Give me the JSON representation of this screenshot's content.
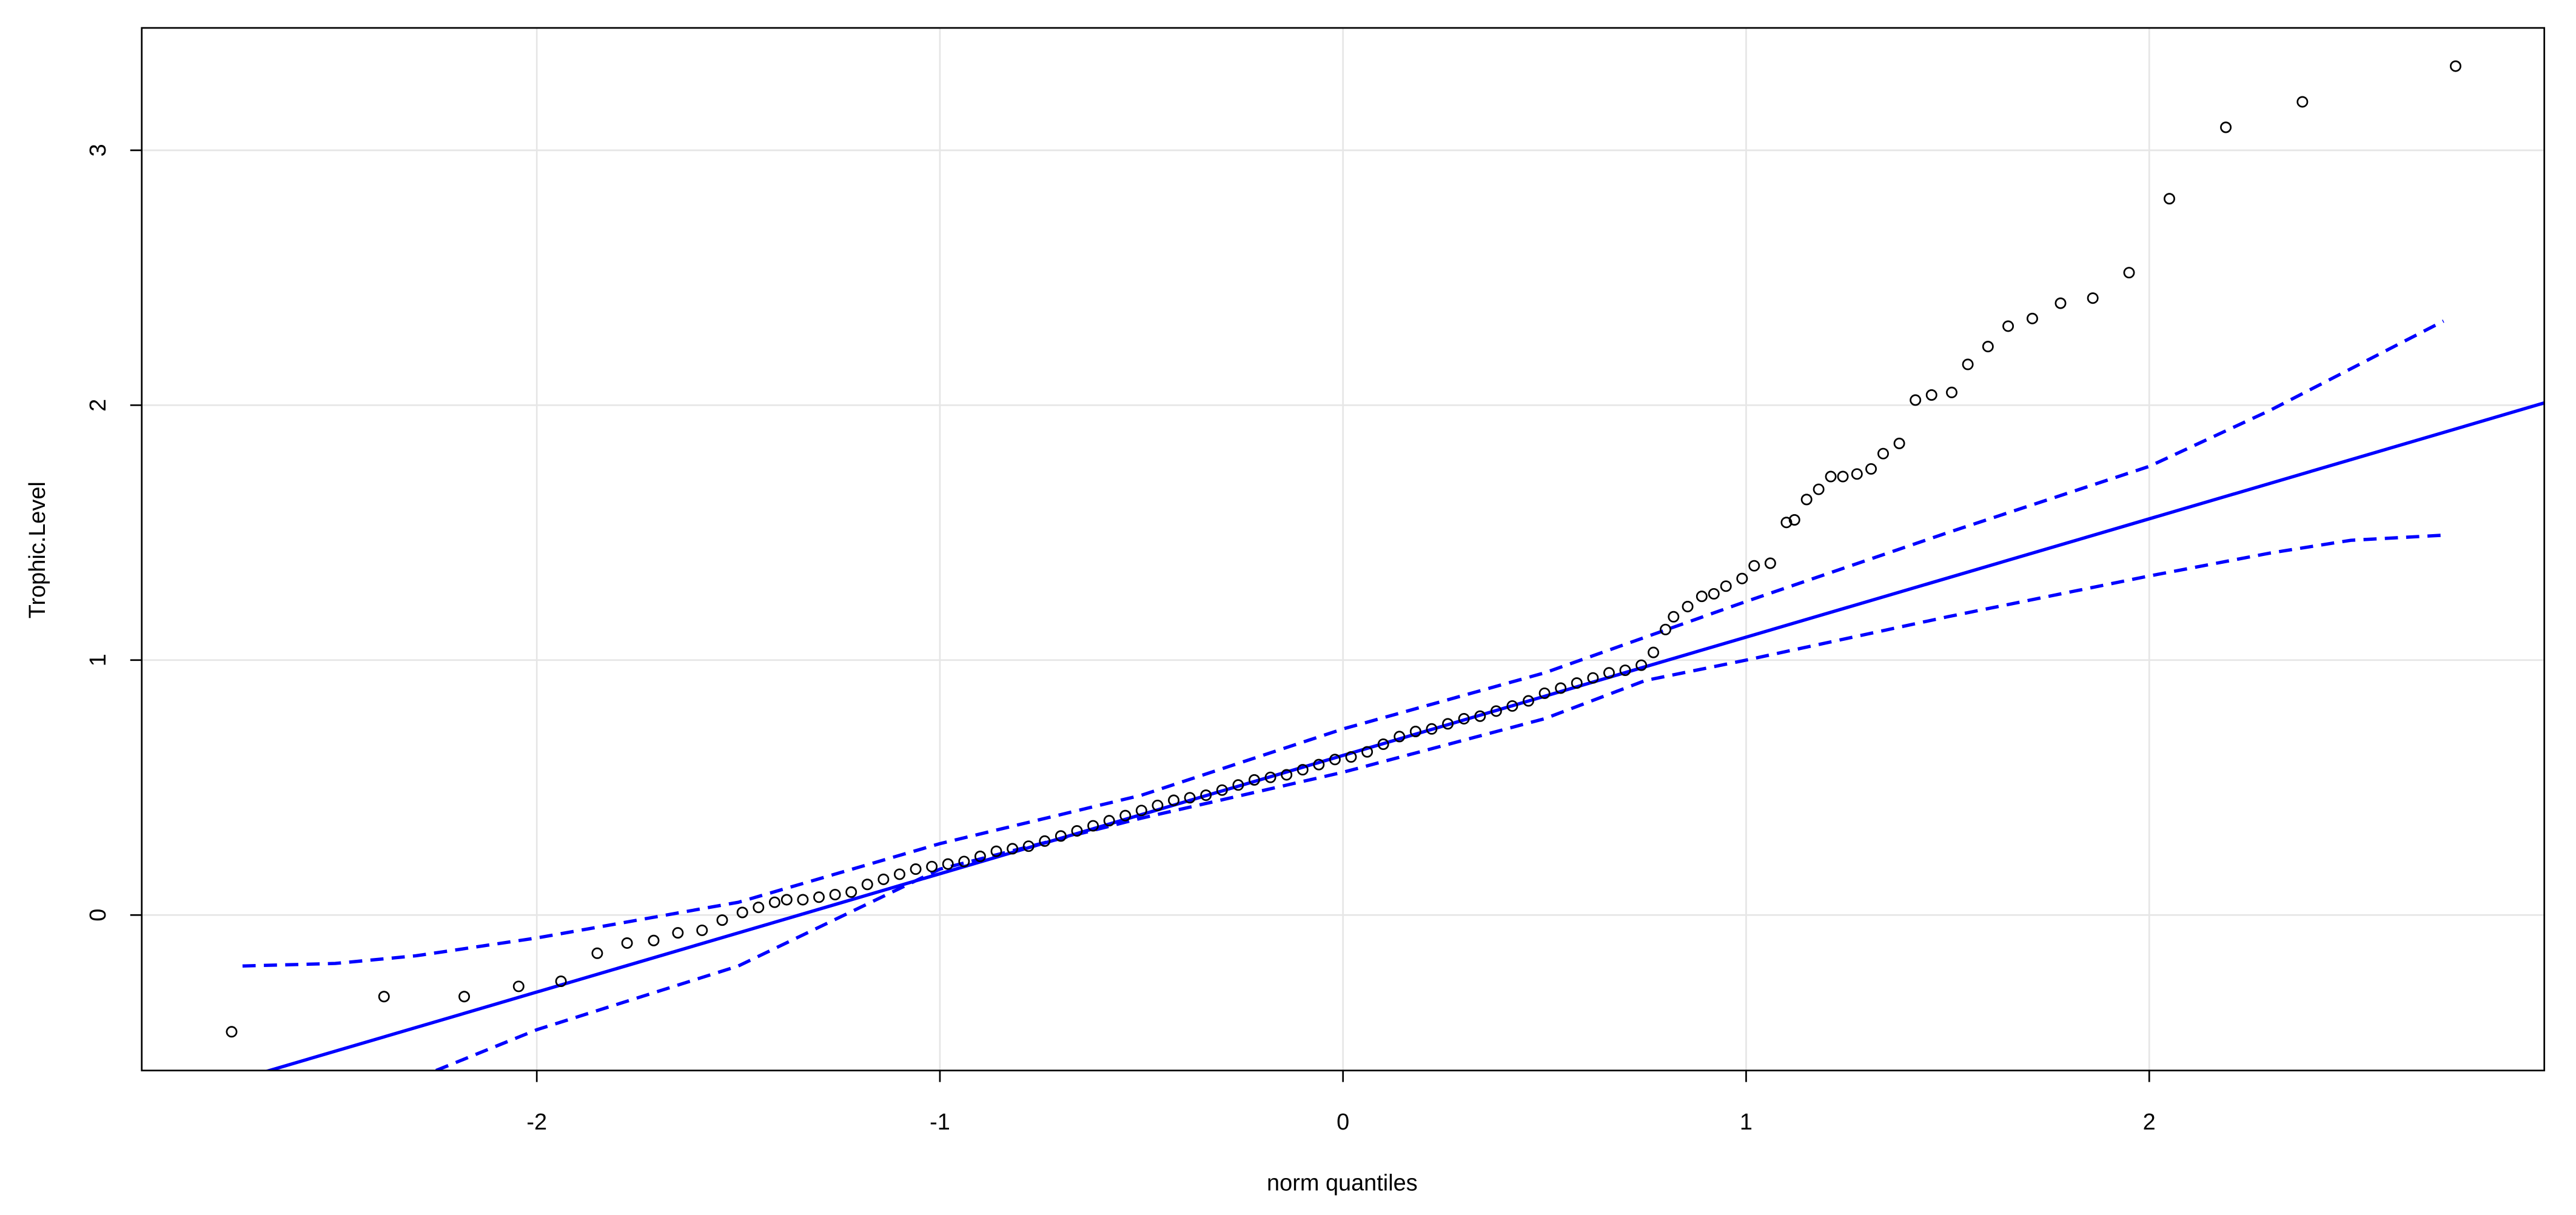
{
  "chart_data": {
    "type": "scatter",
    "x_label": "norm quantiles",
    "y_label": "Trophic.Level",
    "xlim": [
      -2.98,
      2.98
    ],
    "ylim": [
      -0.61,
      3.48
    ],
    "xticks": [
      -2,
      -1,
      0,
      1,
      2
    ],
    "yticks": [
      0,
      1,
      2,
      3
    ],
    "grid": true,
    "point_color": "#000000",
    "x": [
      -2.757,
      -2.379,
      -2.18,
      -2.045,
      -1.94,
      -1.85,
      -1.776,
      -1.71,
      -1.65,
      -1.59,
      -1.54,
      -1.49,
      -1.45,
      -1.41,
      -1.38,
      -1.34,
      -1.3,
      -1.26,
      -1.22,
      -1.18,
      -1.14,
      -1.1,
      -1.06,
      -1.02,
      -0.98,
      -0.94,
      -0.9,
      -0.86,
      -0.82,
      -0.78,
      -0.74,
      -0.7,
      -0.66,
      -0.62,
      -0.58,
      -0.54,
      -0.5,
      -0.46,
      -0.42,
      -0.38,
      -0.34,
      -0.3,
      -0.26,
      -0.22,
      -0.18,
      -0.14,
      -0.1,
      -0.06,
      -0.02,
      0.02,
      0.06,
      0.1,
      0.14,
      0.18,
      0.22,
      0.26,
      0.3,
      0.34,
      0.38,
      0.42,
      0.46,
      0.5,
      0.54,
      0.58,
      0.62,
      0.66,
      0.7,
      0.74,
      0.77,
      0.8,
      0.82,
      0.855,
      0.89,
      0.92,
      0.95,
      0.99,
      1.02,
      1.06,
      1.1,
      1.12,
      1.15,
      1.18,
      1.21,
      1.24,
      1.275,
      1.31,
      1.34,
      1.38,
      1.42,
      1.46,
      1.51,
      1.55,
      1.6,
      1.65,
      1.71,
      1.78,
      1.86,
      1.95,
      2.05,
      2.19,
      2.38,
      2.76
    ],
    "values": [
      -0.458,
      -0.32,
      -0.32,
      -0.28,
      -0.26,
      -0.15,
      -0.11,
      -0.1,
      -0.07,
      -0.06,
      -0.02,
      0.01,
      0.03,
      0.05,
      0.06,
      0.06,
      0.07,
      0.08,
      0.09,
      0.12,
      0.14,
      0.16,
      0.18,
      0.19,
      0.2,
      0.21,
      0.23,
      0.25,
      0.26,
      0.27,
      0.29,
      0.31,
      0.33,
      0.35,
      0.37,
      0.39,
      0.41,
      0.43,
      0.45,
      0.46,
      0.47,
      0.49,
      0.51,
      0.53,
      0.54,
      0.55,
      0.57,
      0.59,
      0.61,
      0.62,
      0.64,
      0.67,
      0.7,
      0.72,
      0.73,
      0.75,
      0.77,
      0.78,
      0.8,
      0.82,
      0.84,
      0.87,
      0.89,
      0.91,
      0.93,
      0.95,
      0.96,
      0.98,
      1.03,
      1.12,
      1.17,
      1.21,
      1.25,
      1.26,
      1.29,
      1.32,
      1.37,
      1.38,
      1.54,
      1.55,
      1.63,
      1.67,
      1.72,
      1.72,
      1.73,
      1.75,
      1.81,
      1.85,
      2.02,
      2.04,
      2.05,
      2.16,
      2.23,
      2.31,
      2.34,
      2.4,
      2.42,
      2.52,
      2.81,
      3.09,
      3.19,
      3.33
    ],
    "lines": [
      {
        "color": "#0000ff",
        "dashed": false,
        "x": [
          -2.98,
          2.98
        ],
        "values": [
          -0.757,
          2.009
        ]
      },
      {
        "color": "#0000ff",
        "dashed": true,
        "x": [
          -2.73,
          -2.5,
          -2.3,
          -2,
          -1.5,
          -1,
          -0.5,
          0,
          0.5,
          1,
          1.5,
          2,
          2.3,
          2.73
        ],
        "values": [
          -0.2,
          -0.19,
          -0.16,
          -0.09,
          0.05,
          0.28,
          0.47,
          0.73,
          0.95,
          1.23,
          1.5,
          1.76,
          1.98,
          2.33
        ]
      },
      {
        "color": "#0000ff",
        "dashed": true,
        "x": [
          -2.25,
          -2,
          -1.5,
          -1,
          -0.5,
          0,
          0.5,
          0.75,
          1,
          1.5,
          2,
          2.3,
          2.5,
          2.73
        ],
        "values": [
          -0.61,
          -0.45,
          -0.2,
          0.18,
          0.38,
          0.56,
          0.77,
          0.92,
          1.0,
          1.17,
          1.33,
          1.42,
          1.47,
          1.49
        ]
      }
    ]
  }
}
